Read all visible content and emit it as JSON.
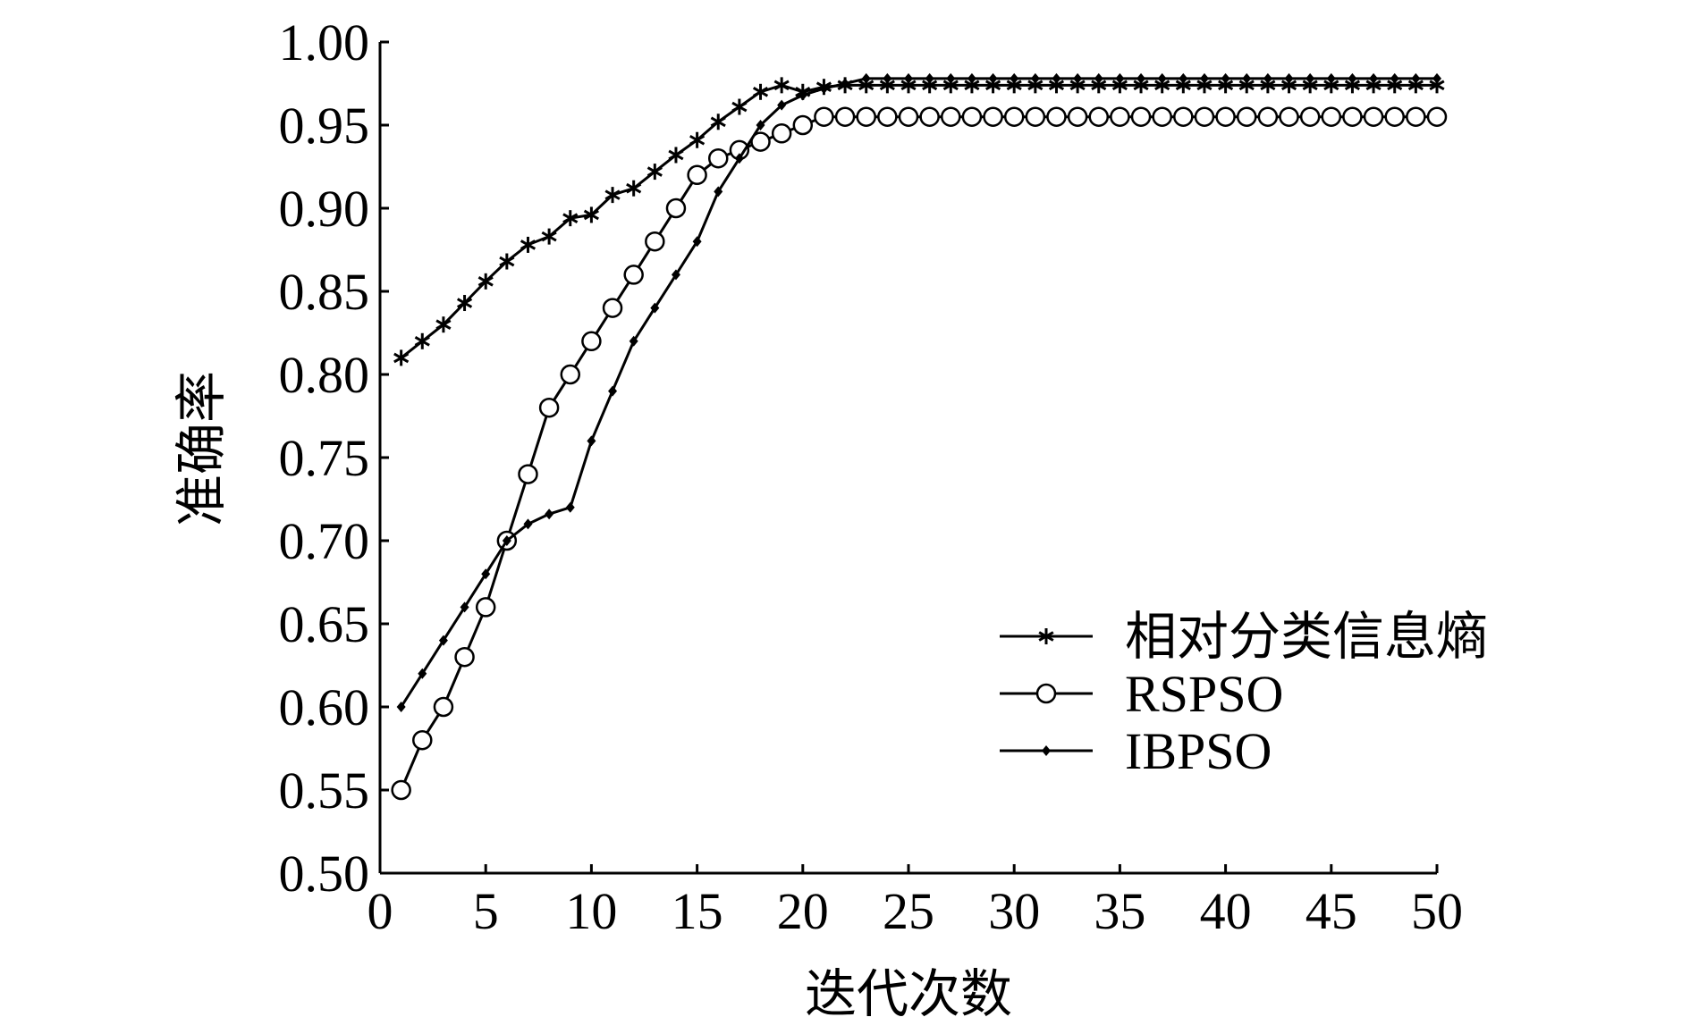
{
  "chart_data": {
    "type": "line",
    "xlabel": "迭代次数",
    "ylabel": "准确率",
    "xlim": [
      0,
      50
    ],
    "ylim": [
      0.5,
      1.0
    ],
    "xticks": [
      0,
      5,
      10,
      15,
      20,
      25,
      30,
      35,
      40,
      45,
      50
    ],
    "xtick_labels": [
      "0",
      "5",
      "10",
      "15",
      "20",
      "25",
      "30",
      "35",
      "40",
      "45",
      "50"
    ],
    "yticks": [
      0.5,
      0.55,
      0.6,
      0.65,
      0.7,
      0.75,
      0.8,
      0.85,
      0.9,
      0.95,
      1.0
    ],
    "ytick_labels": [
      "0.50",
      "0.55",
      "0.60",
      "0.65",
      "0.70",
      "0.75",
      "0.80",
      "0.85",
      "0.90",
      "0.95",
      "1.00"
    ],
    "legend_position": "lower-right",
    "grid": false,
    "series": [
      {
        "name": "相对分类信息熵",
        "marker": "star",
        "x": [
          1,
          2,
          3,
          4,
          5,
          6,
          7,
          8,
          9,
          10,
          11,
          12,
          13,
          14,
          15,
          16,
          17,
          18,
          19,
          20,
          21,
          22,
          23,
          24,
          25,
          26,
          27,
          28,
          29,
          30,
          31,
          32,
          33,
          34,
          35,
          36,
          37,
          38,
          39,
          40,
          41,
          42,
          43,
          44,
          45,
          46,
          47,
          48,
          49,
          50
        ],
        "values": [
          0.81,
          0.82,
          0.83,
          0.843,
          0.856,
          0.868,
          0.878,
          0.883,
          0.894,
          0.896,
          0.908,
          0.912,
          0.922,
          0.932,
          0.941,
          0.952,
          0.961,
          0.97,
          0.974,
          0.97,
          0.973,
          0.974,
          0.974,
          0.974,
          0.974,
          0.974,
          0.974,
          0.974,
          0.974,
          0.974,
          0.974,
          0.974,
          0.974,
          0.974,
          0.974,
          0.974,
          0.974,
          0.974,
          0.974,
          0.974,
          0.974,
          0.974,
          0.974,
          0.974,
          0.974,
          0.974,
          0.974,
          0.974,
          0.974,
          0.974
        ]
      },
      {
        "name": "RSPSO",
        "marker": "circle",
        "x": [
          1,
          2,
          3,
          4,
          5,
          6,
          7,
          8,
          9,
          10,
          11,
          12,
          13,
          14,
          15,
          16,
          17,
          18,
          19,
          20,
          21,
          22,
          23,
          24,
          25,
          26,
          27,
          28,
          29,
          30,
          31,
          32,
          33,
          34,
          35,
          36,
          37,
          38,
          39,
          40,
          41,
          42,
          43,
          44,
          45,
          46,
          47,
          48,
          49,
          50
        ],
        "values": [
          0.55,
          0.58,
          0.6,
          0.63,
          0.66,
          0.7,
          0.74,
          0.78,
          0.8,
          0.82,
          0.84,
          0.86,
          0.88,
          0.9,
          0.92,
          0.93,
          0.935,
          0.94,
          0.945,
          0.95,
          0.955,
          0.955,
          0.955,
          0.955,
          0.955,
          0.955,
          0.955,
          0.955,
          0.955,
          0.955,
          0.955,
          0.955,
          0.955,
          0.955,
          0.955,
          0.955,
          0.955,
          0.955,
          0.955,
          0.955,
          0.955,
          0.955,
          0.955,
          0.955,
          0.955,
          0.955,
          0.955,
          0.955,
          0.955,
          0.955
        ]
      },
      {
        "name": "IBPSO",
        "marker": "dot",
        "x": [
          1,
          2,
          3,
          4,
          5,
          6,
          7,
          8,
          9,
          10,
          11,
          12,
          13,
          14,
          15,
          16,
          17,
          18,
          19,
          20,
          21,
          22,
          23,
          24,
          25,
          26,
          27,
          28,
          29,
          30,
          31,
          32,
          33,
          34,
          35,
          36,
          37,
          38,
          39,
          40,
          41,
          42,
          43,
          44,
          45,
          46,
          47,
          48,
          49,
          50
        ],
        "values": [
          0.6,
          0.62,
          0.64,
          0.66,
          0.68,
          0.7,
          0.71,
          0.716,
          0.72,
          0.76,
          0.79,
          0.82,
          0.84,
          0.86,
          0.88,
          0.91,
          0.93,
          0.95,
          0.962,
          0.968,
          0.972,
          0.975,
          0.978,
          0.978,
          0.978,
          0.978,
          0.978,
          0.978,
          0.978,
          0.978,
          0.978,
          0.978,
          0.978,
          0.978,
          0.978,
          0.978,
          0.978,
          0.978,
          0.978,
          0.978,
          0.978,
          0.978,
          0.978,
          0.978,
          0.978,
          0.978,
          0.978,
          0.978,
          0.978,
          0.978
        ]
      }
    ]
  }
}
